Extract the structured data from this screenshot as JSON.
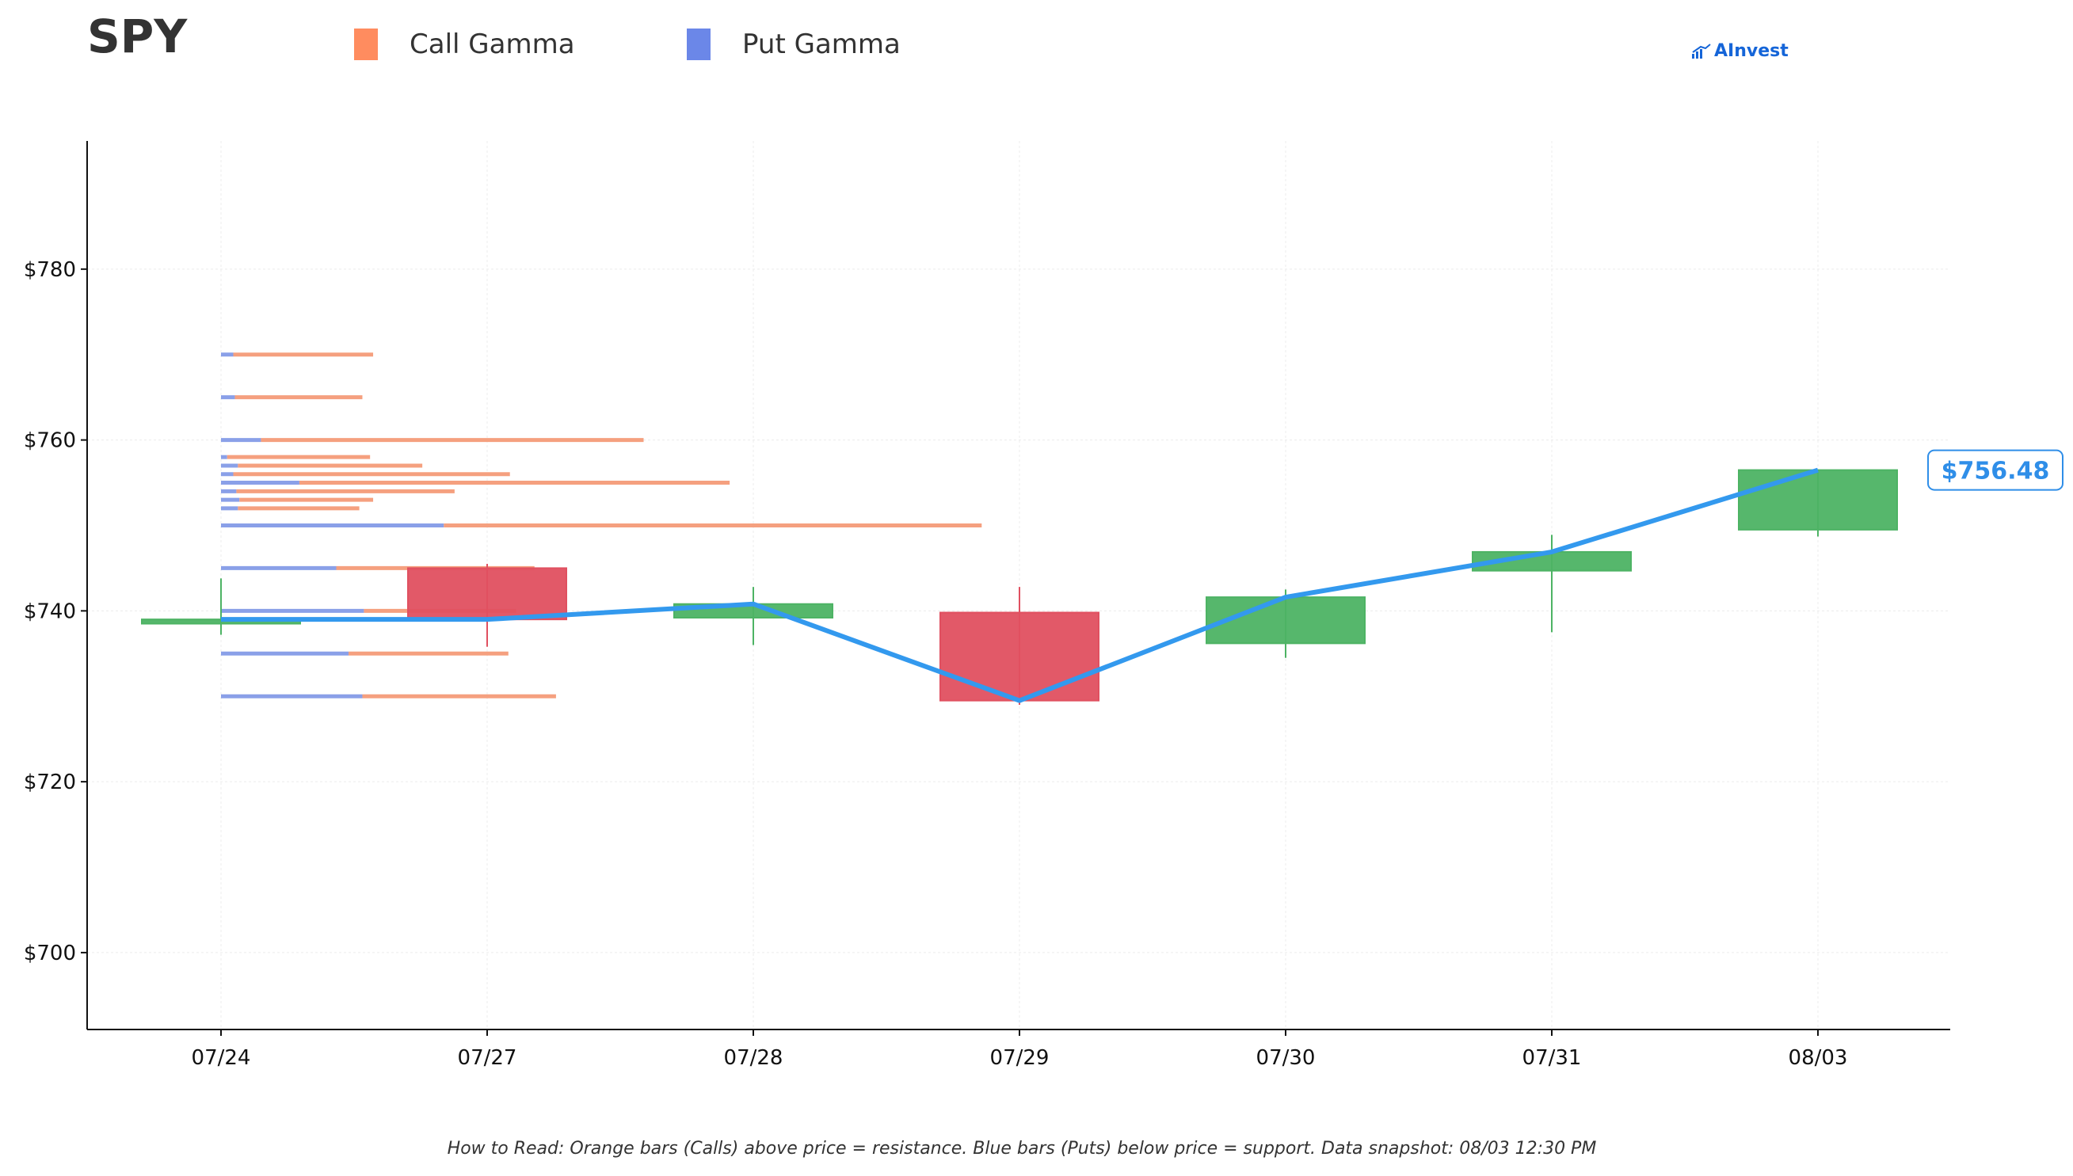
{
  "header": {
    "ticker": "SPY",
    "legend": [
      {
        "label": "Call Gamma",
        "color": "#ff8c5f"
      },
      {
        "label": "Put Gamma",
        "color": "#6b87e8"
      }
    ],
    "brand": "AInvest"
  },
  "footnote": "How to Read: Orange bars (Calls) above price = resistance. Blue bars (Puts) below price = support. Data snapshot: 08/03 12:30 PM",
  "colors": {
    "up": "#4db364",
    "down": "#e05060",
    "call": "#f5a07f",
    "put": "#8aa0e8",
    "price_line": "#3399ee",
    "badge": "#2f8ee8"
  },
  "chart_data": {
    "type": "candlestick",
    "ylim": [
      691,
      795
    ],
    "yticks": [
      700,
      720,
      740,
      760,
      780
    ],
    "ytick_labels": [
      "$700",
      "$720",
      "$740",
      "$760",
      "$780"
    ],
    "categories": [
      "07/24",
      "07/27",
      "07/28",
      "07/29",
      "07/30",
      "07/31",
      "08/03"
    ],
    "candles": [
      {
        "date": "07/24",
        "open": 738.5,
        "high": 743.8,
        "low": 737.2,
        "close": 739.0
      },
      {
        "date": "07/27",
        "open": 745.0,
        "high": 745.5,
        "low": 735.8,
        "close": 739.0
      },
      {
        "date": "07/28",
        "open": 739.2,
        "high": 742.8,
        "low": 736.0,
        "close": 740.8
      },
      {
        "date": "07/29",
        "open": 739.8,
        "high": 742.8,
        "low": 729.0,
        "close": 729.5
      },
      {
        "date": "07/30",
        "open": 736.2,
        "high": 742.5,
        "low": 734.5,
        "close": 741.6
      },
      {
        "date": "07/31",
        "open": 744.7,
        "high": 748.9,
        "low": 737.5,
        "close": 746.9
      },
      {
        "date": "08/03",
        "open": 749.5,
        "high": 756.5,
        "low": 748.7,
        "close": 756.48
      }
    ],
    "price_line": [
      739.0,
      739.0,
      740.8,
      729.5,
      741.6,
      746.9,
      756.48
    ],
    "last_price_label": "$756.48",
    "gamma_levels": [
      {
        "strike": 770,
        "put": 0.08,
        "call": 0.91
      },
      {
        "strike": 765,
        "put": 0.09,
        "call": 0.83
      },
      {
        "strike": 760,
        "put": 0.26,
        "call": 2.49
      },
      {
        "strike": 758,
        "put": 0.04,
        "call": 0.93
      },
      {
        "strike": 757,
        "put": 0.11,
        "call": 1.2
      },
      {
        "strike": 756,
        "put": 0.08,
        "call": 1.8
      },
      {
        "strike": 755,
        "put": 0.51,
        "call": 2.8
      },
      {
        "strike": 754,
        "put": 0.1,
        "call": 1.42
      },
      {
        "strike": 753,
        "put": 0.12,
        "call": 0.87
      },
      {
        "strike": 752,
        "put": 0.11,
        "call": 0.79
      },
      {
        "strike": 750,
        "put": 1.45,
        "call": 3.5
      },
      {
        "strike": 745,
        "put": 0.75,
        "call": 1.29
      },
      {
        "strike": 740,
        "put": 0.93,
        "call": 0.99
      },
      {
        "strike": 735,
        "put": 0.83,
        "call": 1.04
      },
      {
        "strike": 730,
        "put": 0.92,
        "call": 1.26
      }
    ]
  }
}
